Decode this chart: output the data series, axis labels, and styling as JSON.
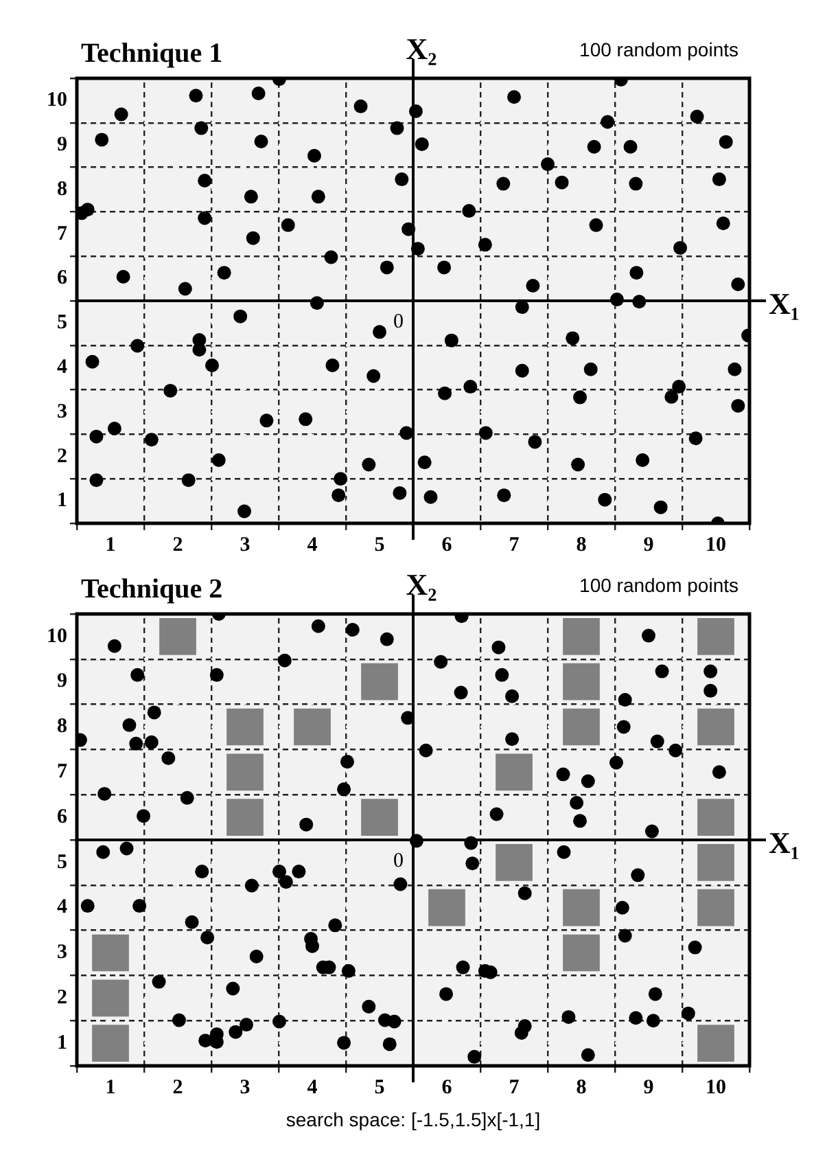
{
  "chart_data": [
    {
      "type": "scatter",
      "title": "Technique 1",
      "xlabel": "X₁",
      "ylabel": "X₂",
      "annotations": [
        "100 random points",
        "0"
      ],
      "xlim": [
        0,
        10
      ],
      "ylim": [
        0,
        10
      ],
      "xticks": [
        {
          "value": 0,
          "label": null
        },
        {
          "value": 0.5,
          "label": "1"
        },
        {
          "value": 1,
          "label": null
        },
        {
          "value": 1.5,
          "label": "2"
        },
        {
          "value": 2,
          "label": null
        },
        {
          "value": 2.5,
          "label": "3"
        },
        {
          "value": 3,
          "label": null
        },
        {
          "value": 3.5,
          "label": "4"
        },
        {
          "value": 4,
          "label": null
        },
        {
          "value": 4.5,
          "label": "5"
        },
        {
          "value": 5,
          "label": null
        },
        {
          "value": 5.5,
          "label": "6"
        },
        {
          "value": 6,
          "label": null
        },
        {
          "value": 6.5,
          "label": "7"
        },
        {
          "value": 7,
          "label": null
        },
        {
          "value": 7.5,
          "label": "8"
        },
        {
          "value": 8,
          "label": null
        },
        {
          "value": 8.5,
          "label": "9"
        },
        {
          "value": 9,
          "label": null
        },
        {
          "value": 9.5,
          "label": "10"
        },
        {
          "value": 10,
          "label": null
        }
      ],
      "yticks": [
        {
          "value": 0,
          "label": null
        },
        {
          "value": 0.5,
          "label": "1"
        },
        {
          "value": 1,
          "label": null
        },
        {
          "value": 1.5,
          "label": "2"
        },
        {
          "value": 2,
          "label": null
        },
        {
          "value": 2.5,
          "label": "3"
        },
        {
          "value": 3,
          "label": null
        },
        {
          "value": 3.5,
          "label": "4"
        },
        {
          "value": 4,
          "label": null
        },
        {
          "value": 4.5,
          "label": "5"
        },
        {
          "value": 5,
          "label": null
        },
        {
          "value": 5.5,
          "label": "6"
        },
        {
          "value": 6,
          "label": null
        },
        {
          "value": 6.5,
          "label": "7"
        },
        {
          "value": 7,
          "label": null
        },
        {
          "value": 7.5,
          "label": "8"
        },
        {
          "value": 8,
          "label": null
        },
        {
          "value": 8.5,
          "label": "9"
        },
        {
          "value": 9,
          "label": null
        },
        {
          "value": 9.5,
          "label": "10"
        },
        {
          "value": 10,
          "label": null
        }
      ],
      "grid": true,
      "series": [
        {
          "color": "#000000",
          "marker": "circle",
          "x": [
            1.77,
            2.7,
            3.01,
            0.66,
            0.37,
            1.85,
            2.74,
            3.53,
            1.9,
            2.59,
            3.59,
            0.07,
            0.16,
            1.9,
            3.14,
            2.62,
            3.78,
            0.69,
            2.19,
            1.61,
            3.57,
            2.43,
            0.9,
            1.82,
            1.82,
            0.23,
            2.01,
            3.8,
            1.39,
            0.56,
            0.29,
            1.11,
            2.82,
            3.4,
            2.11,
            0.29,
            1.66,
            3.92,
            3.89,
            2.49,
            4.22,
            4.76,
            5.04,
            5.13,
            4.83,
            4.93,
            5.07,
            4.61,
            4.5,
            4.41,
            4.9,
            4.34,
            4.8,
            5.17,
            5.46,
            6.5,
            7.89,
            8.09,
            7.69,
            8.23,
            9.22,
            9.65,
            7.0,
            7.21,
            6.34,
            8.31,
            9.55,
            5.83,
            7.72,
            9.61,
            6.07,
            8.97,
            6.78,
            8.32,
            9.83,
            6.62,
            8.03,
            8.36,
            5.57,
            7.37,
            9.98,
            6.62,
            7.64,
            5.85,
            5.47,
            7.48,
            8.95,
            8.84,
            9.78,
            9.83,
            6.08,
            6.81,
            9.2,
            7.45,
            8.41,
            5.26,
            6.35,
            7.85,
            8.68,
            9.53
          ],
          "values": [
            9.61,
            9.66,
            9.98,
            9.19,
            8.62,
            8.88,
            8.58,
            8.26,
            7.7,
            7.34,
            7.34,
            6.97,
            7.05,
            6.86,
            6.7,
            6.41,
            5.98,
            5.54,
            5.63,
            5.27,
            4.95,
            4.65,
            3.99,
            4.12,
            3.9,
            3.63,
            3.55,
            3.55,
            2.98,
            2.13,
            1.95,
            1.88,
            2.31,
            2.34,
            1.42,
            0.97,
            0.97,
            1.0,
            0.63,
            0.27,
            9.37,
            8.88,
            9.26,
            8.52,
            7.73,
            6.61,
            6.17,
            5.75,
            4.3,
            3.31,
            2.03,
            1.32,
            0.68,
            1.37,
            5.75,
            9.58,
            9.02,
            9.97,
            8.46,
            8.46,
            9.14,
            8.57,
            8.07,
            7.66,
            7.63,
            7.63,
            7.73,
            7.02,
            6.7,
            6.74,
            6.26,
            6.19,
            5.34,
            5.63,
            5.37,
            4.86,
            5.03,
            4.98,
            4.11,
            4.16,
            4.22,
            3.43,
            3.46,
            3.07,
            2.92,
            2.83,
            3.07,
            2.84,
            3.46,
            2.64,
            2.03,
            1.83,
            1.91,
            1.32,
            1.42,
            0.59,
            0.63,
            0.53,
            0.36,
            0.0
          ]
        }
      ]
    },
    {
      "type": "scatter",
      "title": "Technique 2",
      "xlabel": "X₁",
      "ylabel": "X₂",
      "annotations": [
        "100 random points",
        "0",
        "search space: [-1.5,1.5]x[-1,1]"
      ],
      "xlim": [
        0,
        10
      ],
      "ylim": [
        0,
        10
      ],
      "xticks": [
        {
          "value": 0,
          "label": null
        },
        {
          "value": 0.5,
          "label": "1"
        },
        {
          "value": 1,
          "label": null
        },
        {
          "value": 1.5,
          "label": "2"
        },
        {
          "value": 2,
          "label": null
        },
        {
          "value": 2.5,
          "label": "3"
        },
        {
          "value": 3,
          "label": null
        },
        {
          "value": 3.5,
          "label": "4"
        },
        {
          "value": 4,
          "label": null
        },
        {
          "value": 4.5,
          "label": "5"
        },
        {
          "value": 5,
          "label": null
        },
        {
          "value": 5.5,
          "label": "6"
        },
        {
          "value": 6,
          "label": null
        },
        {
          "value": 6.5,
          "label": "7"
        },
        {
          "value": 7,
          "label": null
        },
        {
          "value": 7.5,
          "label": "8"
        },
        {
          "value": 8,
          "label": null
        },
        {
          "value": 8.5,
          "label": "9"
        },
        {
          "value": 9,
          "label": null
        },
        {
          "value": 9.5,
          "label": "10"
        },
        {
          "value": 10,
          "label": null
        }
      ],
      "yticks": [
        {
          "value": 0,
          "label": null
        },
        {
          "value": 0.5,
          "label": "1"
        },
        {
          "value": 1,
          "label": null
        },
        {
          "value": 1.5,
          "label": "2"
        },
        {
          "value": 2,
          "label": null
        },
        {
          "value": 2.5,
          "label": "3"
        },
        {
          "value": 3,
          "label": null
        },
        {
          "value": 3.5,
          "label": "4"
        },
        {
          "value": 4,
          "label": null
        },
        {
          "value": 4.5,
          "label": "5"
        },
        {
          "value": 5,
          "label": null
        },
        {
          "value": 5.5,
          "label": "6"
        },
        {
          "value": 6,
          "label": null
        },
        {
          "value": 6.5,
          "label": "7"
        },
        {
          "value": 7,
          "label": null
        },
        {
          "value": 7.5,
          "label": "8"
        },
        {
          "value": 8,
          "label": null
        },
        {
          "value": 8.5,
          "label": "9"
        },
        {
          "value": 9,
          "label": null
        },
        {
          "value": 9.5,
          "label": "10"
        },
        {
          "value": 10,
          "label": null
        }
      ],
      "grid": true,
      "series": [
        {
          "color": "#000000",
          "marker": "circle",
          "x": [
            2.11,
            3.59,
            4.1,
            4.61,
            0.56,
            3.09,
            0.9,
            2.08,
            1.15,
            4.92,
            0.78,
            0.05,
            0.88,
            1.11,
            1.36,
            4.02,
            3.97,
            0.41,
            1.64,
            0.99,
            3.41,
            5.05,
            0.39,
            0.74,
            1.86,
            3.01,
            3.3,
            3.11,
            2.6,
            4.81,
            0.16,
            0.93,
            1.71,
            1.94,
            3.84,
            3.48,
            3.5,
            2.67,
            3.66,
            3.75,
            4.04,
            1.22,
            2.32,
            4.34,
            1.52,
            3.01,
            4.58,
            4.72,
            2.52,
            2.36,
            1.91,
            2.08,
            2.08,
            3.97,
            4.65,
            5.72,
            5.41,
            5.71,
            6.27,
            6.32,
            6.47,
            5.19,
            6.47,
            8.15,
            8.13,
            8.5,
            8.7,
            9.42,
            9.42,
            8.63,
            8.9,
            8.02,
            7.23,
            7.6,
            9.55,
            7.43,
            7.48,
            6.24,
            8.55,
            5.86,
            5.88,
            7.24,
            6.66,
            8.34,
            8.11,
            8.15,
            9.19,
            5.74,
            6.07,
            6.15,
            5.49,
            8.6,
            7.31,
            8.31,
            8.57,
            9.09,
            6.66,
            6.61,
            5.91,
            7.6
          ],
          "values": [
            10.0,
            9.73,
            9.65,
            9.44,
            9.29,
            8.97,
            8.65,
            8.65,
            7.82,
            7.7,
            7.54,
            7.21,
            7.13,
            7.16,
            6.81,
            6.73,
            6.12,
            6.02,
            5.93,
            5.53,
            5.34,
            4.98,
            4.73,
            4.81,
            4.3,
            4.3,
            4.3,
            4.07,
            3.99,
            4.02,
            3.54,
            3.54,
            3.18,
            2.84,
            3.11,
            2.81,
            2.65,
            2.42,
            2.18,
            2.18,
            2.1,
            1.86,
            1.71,
            1.31,
            1.01,
            0.98,
            1.01,
            0.98,
            0.91,
            0.75,
            0.56,
            0.7,
            0.53,
            0.51,
            0.48,
            9.95,
            8.94,
            8.26,
            9.26,
            8.65,
            8.18,
            6.98,
            7.23,
            8.1,
            7.5,
            9.52,
            8.73,
            8.73,
            8.3,
            7.18,
            6.98,
            6.71,
            6.45,
            6.3,
            6.5,
            5.82,
            5.42,
            5.57,
            5.19,
            4.93,
            4.48,
            4.73,
            3.82,
            4.22,
            3.5,
            2.88,
            2.62,
            2.18,
            2.1,
            2.07,
            1.59,
            1.59,
            1.08,
            1.06,
            1.0,
            1.16,
            0.88,
            0.73,
            0.2,
            0.24
          ]
        },
        {
          "color": "#808080",
          "marker": "square",
          "x": [
            1.5,
            4.5,
            2.5,
            3.5,
            2.5,
            2.5,
            4.5,
            0.5,
            0.5,
            0.5,
            7.5,
            9.5,
            7.5,
            7.5,
            9.5,
            6.5,
            9.5,
            6.5,
            9.5,
            5.5,
            7.5,
            9.5,
            7.5,
            9.5
          ],
          "values": [
            9.5,
            8.5,
            7.5,
            7.5,
            6.5,
            5.5,
            5.5,
            2.5,
            1.5,
            0.5,
            9.5,
            9.5,
            8.5,
            7.5,
            7.5,
            6.5,
            5.5,
            4.5,
            4.5,
            3.5,
            3.5,
            3.5,
            2.5,
            0.5
          ]
        }
      ]
    }
  ]
}
